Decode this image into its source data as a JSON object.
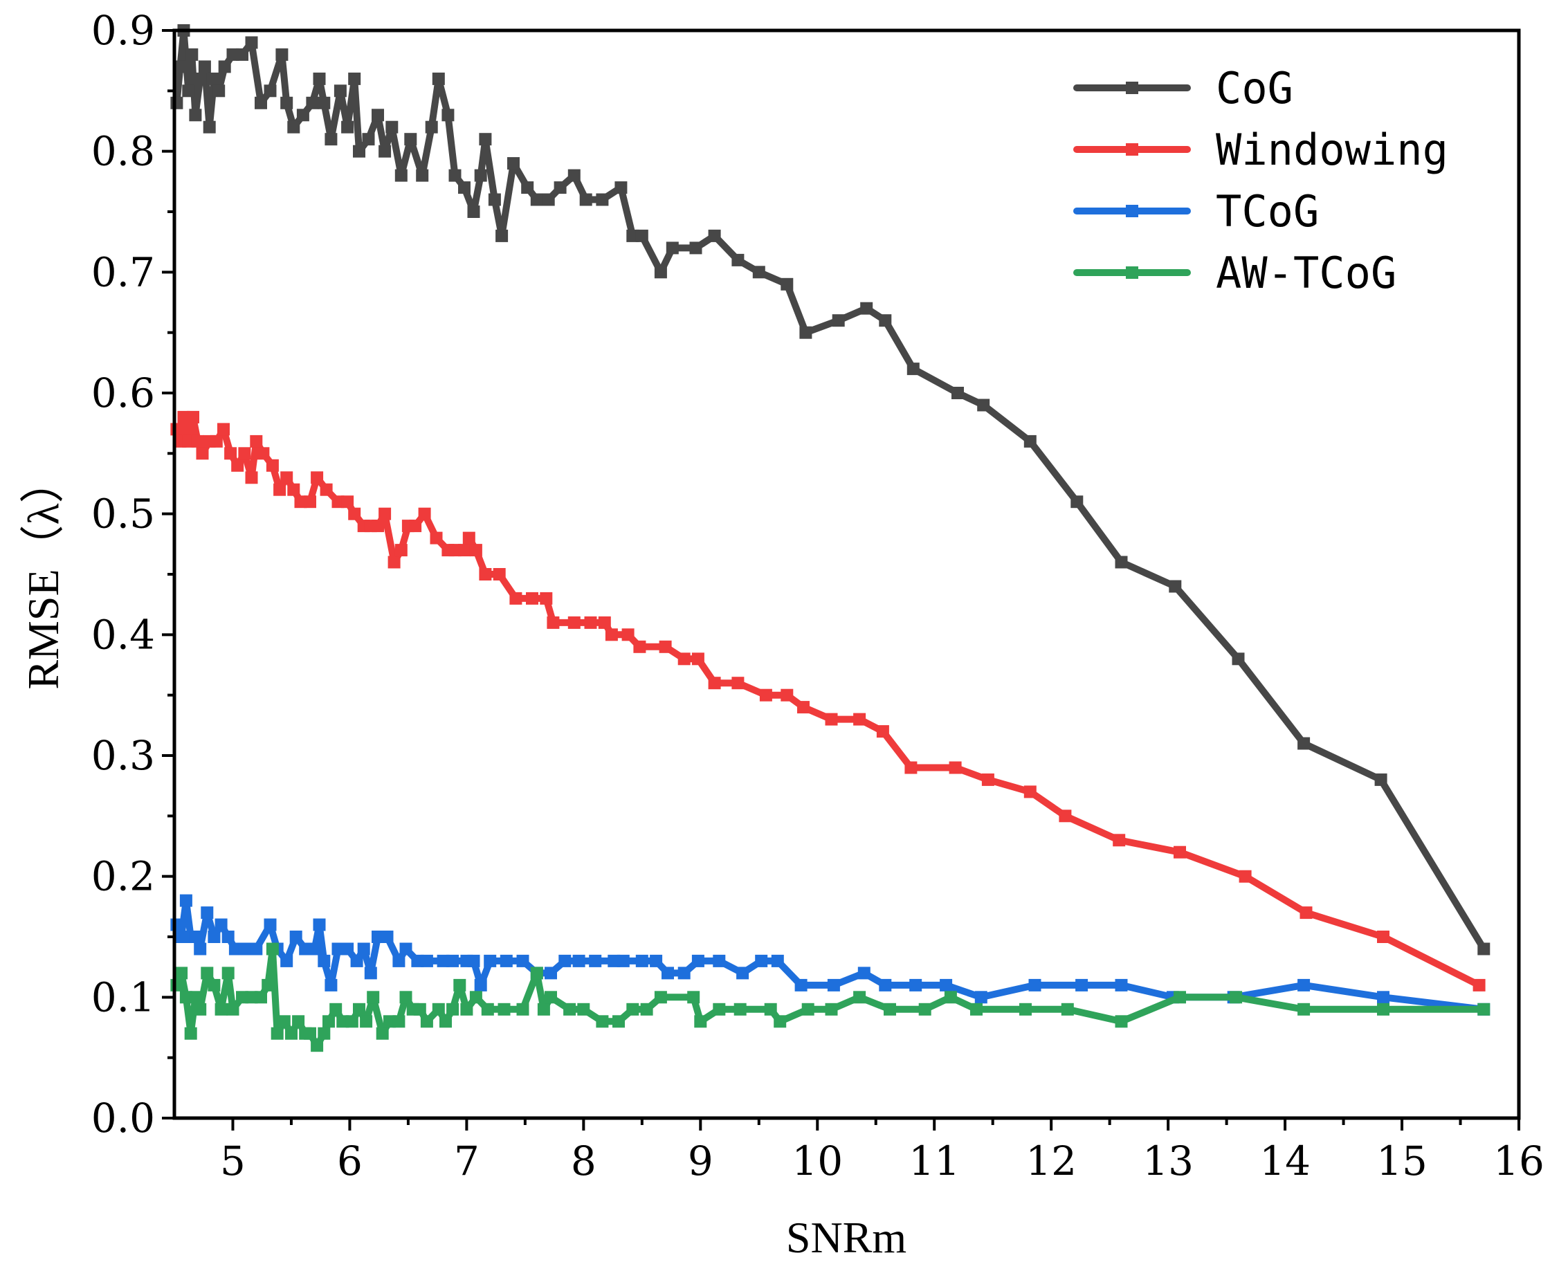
{
  "chart_data": {
    "type": "line",
    "title": "",
    "xlabel": "SNRm",
    "ylabel": "RMSE（λ）",
    "xlim": [
      4.5,
      16
    ],
    "ylim": [
      0.0,
      0.9
    ],
    "xticks": [
      "5",
      "6",
      "7",
      "8",
      "9",
      "10",
      "11",
      "12",
      "13",
      "14",
      "15",
      "16"
    ],
    "yticks": [
      "0.0",
      "0.1",
      "0.2",
      "0.3",
      "0.4",
      "0.5",
      "0.6",
      "0.7",
      "0.8",
      "0.9"
    ],
    "legend_position": "top-right",
    "grid": false,
    "series": [
      {
        "name": "CoG",
        "color": "#474747",
        "points": [
          [
            4.52,
            0.84
          ],
          [
            4.55,
            0.87
          ],
          [
            4.58,
            0.9
          ],
          [
            4.62,
            0.85
          ],
          [
            4.65,
            0.88
          ],
          [
            4.68,
            0.83
          ],
          [
            4.72,
            0.86
          ],
          [
            4.76,
            0.87
          ],
          [
            4.8,
            0.82
          ],
          [
            4.84,
            0.86
          ],
          [
            4.88,
            0.85
          ],
          [
            4.93,
            0.87
          ],
          [
            5.0,
            0.88
          ],
          [
            5.08,
            0.88
          ],
          [
            5.16,
            0.89
          ],
          [
            5.24,
            0.84
          ],
          [
            5.32,
            0.85
          ],
          [
            5.42,
            0.88
          ],
          [
            5.46,
            0.84
          ],
          [
            5.52,
            0.82
          ],
          [
            5.6,
            0.83
          ],
          [
            5.68,
            0.84
          ],
          [
            5.74,
            0.86
          ],
          [
            5.78,
            0.84
          ],
          [
            5.84,
            0.81
          ],
          [
            5.92,
            0.85
          ],
          [
            5.98,
            0.82
          ],
          [
            6.04,
            0.86
          ],
          [
            6.08,
            0.8
          ],
          [
            6.16,
            0.81
          ],
          [
            6.24,
            0.83
          ],
          [
            6.3,
            0.8
          ],
          [
            6.36,
            0.82
          ],
          [
            6.44,
            0.78
          ],
          [
            6.52,
            0.81
          ],
          [
            6.62,
            0.78
          ],
          [
            6.7,
            0.82
          ],
          [
            6.76,
            0.86
          ],
          [
            6.84,
            0.83
          ],
          [
            6.9,
            0.78
          ],
          [
            6.98,
            0.77
          ],
          [
            7.06,
            0.75
          ],
          [
            7.12,
            0.78
          ],
          [
            7.16,
            0.81
          ],
          [
            7.24,
            0.76
          ],
          [
            7.3,
            0.73
          ],
          [
            7.4,
            0.79
          ],
          [
            7.52,
            0.77
          ],
          [
            7.6,
            0.76
          ],
          [
            7.7,
            0.76
          ],
          [
            7.8,
            0.77
          ],
          [
            7.92,
            0.78
          ],
          [
            8.02,
            0.76
          ],
          [
            8.16,
            0.76
          ],
          [
            8.32,
            0.77
          ],
          [
            8.42,
            0.73
          ],
          [
            8.5,
            0.73
          ],
          [
            8.66,
            0.7
          ],
          [
            8.76,
            0.72
          ],
          [
            8.96,
            0.72
          ],
          [
            9.12,
            0.73
          ],
          [
            9.32,
            0.71
          ],
          [
            9.5,
            0.7
          ],
          [
            9.74,
            0.69
          ],
          [
            9.9,
            0.65
          ],
          [
            10.18,
            0.66
          ],
          [
            10.42,
            0.67
          ],
          [
            10.58,
            0.66
          ],
          [
            10.82,
            0.62
          ],
          [
            11.2,
            0.6
          ],
          [
            11.42,
            0.59
          ],
          [
            11.82,
            0.56
          ],
          [
            12.22,
            0.51
          ],
          [
            12.6,
            0.46
          ],
          [
            13.06,
            0.44
          ],
          [
            13.6,
            0.38
          ],
          [
            14.16,
            0.31
          ],
          [
            14.82,
            0.28
          ],
          [
            15.7,
            0.14
          ]
        ]
      },
      {
        "name": "Windowing",
        "color": "#ef3b3b",
        "points": [
          [
            4.52,
            0.57
          ],
          [
            4.55,
            0.56
          ],
          [
            4.58,
            0.58
          ],
          [
            4.62,
            0.56
          ],
          [
            4.66,
            0.58
          ],
          [
            4.7,
            0.56
          ],
          [
            4.74,
            0.55
          ],
          [
            4.8,
            0.56
          ],
          [
            4.86,
            0.56
          ],
          [
            4.92,
            0.57
          ],
          [
            4.98,
            0.55
          ],
          [
            5.04,
            0.54
          ],
          [
            5.1,
            0.55
          ],
          [
            5.16,
            0.53
          ],
          [
            5.2,
            0.56
          ],
          [
            5.26,
            0.55
          ],
          [
            5.34,
            0.54
          ],
          [
            5.4,
            0.52
          ],
          [
            5.46,
            0.53
          ],
          [
            5.52,
            0.52
          ],
          [
            5.58,
            0.51
          ],
          [
            5.66,
            0.51
          ],
          [
            5.72,
            0.53
          ],
          [
            5.8,
            0.52
          ],
          [
            5.9,
            0.51
          ],
          [
            5.98,
            0.51
          ],
          [
            6.04,
            0.5
          ],
          [
            6.12,
            0.49
          ],
          [
            6.18,
            0.49
          ],
          [
            6.24,
            0.49
          ],
          [
            6.3,
            0.5
          ],
          [
            6.38,
            0.46
          ],
          [
            6.44,
            0.47
          ],
          [
            6.5,
            0.49
          ],
          [
            6.56,
            0.49
          ],
          [
            6.64,
            0.5
          ],
          [
            6.74,
            0.48
          ],
          [
            6.84,
            0.47
          ],
          [
            6.9,
            0.47
          ],
          [
            6.98,
            0.47
          ],
          [
            7.02,
            0.48
          ],
          [
            7.08,
            0.47
          ],
          [
            7.16,
            0.45
          ],
          [
            7.28,
            0.45
          ],
          [
            7.42,
            0.43
          ],
          [
            7.56,
            0.43
          ],
          [
            7.68,
            0.43
          ],
          [
            7.74,
            0.41
          ],
          [
            7.92,
            0.41
          ],
          [
            8.06,
            0.41
          ],
          [
            8.18,
            0.41
          ],
          [
            8.24,
            0.4
          ],
          [
            8.38,
            0.4
          ],
          [
            8.48,
            0.39
          ],
          [
            8.7,
            0.39
          ],
          [
            8.86,
            0.38
          ],
          [
            8.98,
            0.38
          ],
          [
            9.12,
            0.36
          ],
          [
            9.32,
            0.36
          ],
          [
            9.56,
            0.35
          ],
          [
            9.74,
            0.35
          ],
          [
            9.88,
            0.34
          ],
          [
            10.12,
            0.33
          ],
          [
            10.36,
            0.33
          ],
          [
            10.56,
            0.32
          ],
          [
            10.8,
            0.29
          ],
          [
            11.18,
            0.29
          ],
          [
            11.46,
            0.28
          ],
          [
            11.82,
            0.27
          ],
          [
            12.12,
            0.25
          ],
          [
            12.58,
            0.23
          ],
          [
            13.1,
            0.22
          ],
          [
            13.66,
            0.2
          ],
          [
            14.18,
            0.17
          ],
          [
            14.84,
            0.15
          ],
          [
            15.66,
            0.11
          ]
        ]
      },
      {
        "name": "TCoG",
        "color": "#1e6fdc",
        "points": [
          [
            4.52,
            0.16
          ],
          [
            4.56,
            0.15
          ],
          [
            4.6,
            0.18
          ],
          [
            4.64,
            0.15
          ],
          [
            4.68,
            0.15
          ],
          [
            4.72,
            0.14
          ],
          [
            4.78,
            0.17
          ],
          [
            4.84,
            0.15
          ],
          [
            4.9,
            0.16
          ],
          [
            4.96,
            0.15
          ],
          [
            5.02,
            0.14
          ],
          [
            5.1,
            0.14
          ],
          [
            5.2,
            0.14
          ],
          [
            5.32,
            0.16
          ],
          [
            5.38,
            0.14
          ],
          [
            5.46,
            0.13
          ],
          [
            5.54,
            0.15
          ],
          [
            5.62,
            0.14
          ],
          [
            5.7,
            0.14
          ],
          [
            5.74,
            0.16
          ],
          [
            5.78,
            0.13
          ],
          [
            5.84,
            0.11
          ],
          [
            5.9,
            0.14
          ],
          [
            5.98,
            0.14
          ],
          [
            6.06,
            0.13
          ],
          [
            6.12,
            0.14
          ],
          [
            6.18,
            0.12
          ],
          [
            6.24,
            0.15
          ],
          [
            6.32,
            0.15
          ],
          [
            6.42,
            0.13
          ],
          [
            6.48,
            0.14
          ],
          [
            6.58,
            0.13
          ],
          [
            6.66,
            0.13
          ],
          [
            6.8,
            0.13
          ],
          [
            6.88,
            0.13
          ],
          [
            7.0,
            0.13
          ],
          [
            7.06,
            0.13
          ],
          [
            7.12,
            0.11
          ],
          [
            7.2,
            0.13
          ],
          [
            7.34,
            0.13
          ],
          [
            7.48,
            0.13
          ],
          [
            7.6,
            0.12
          ],
          [
            7.72,
            0.12
          ],
          [
            7.84,
            0.13
          ],
          [
            7.96,
            0.13
          ],
          [
            8.1,
            0.13
          ],
          [
            8.26,
            0.13
          ],
          [
            8.34,
            0.13
          ],
          [
            8.5,
            0.13
          ],
          [
            8.62,
            0.13
          ],
          [
            8.72,
            0.12
          ],
          [
            8.86,
            0.12
          ],
          [
            8.98,
            0.13
          ],
          [
            9.16,
            0.13
          ],
          [
            9.36,
            0.12
          ],
          [
            9.52,
            0.13
          ],
          [
            9.66,
            0.13
          ],
          [
            9.86,
            0.11
          ],
          [
            10.14,
            0.11
          ],
          [
            10.4,
            0.12
          ],
          [
            10.58,
            0.11
          ],
          [
            10.84,
            0.11
          ],
          [
            11.1,
            0.11
          ],
          [
            11.4,
            0.1
          ],
          [
            11.86,
            0.11
          ],
          [
            12.26,
            0.11
          ],
          [
            12.6,
            0.11
          ],
          [
            13.04,
            0.1
          ],
          [
            13.56,
            0.1
          ],
          [
            14.16,
            0.11
          ],
          [
            14.84,
            0.1
          ],
          [
            15.7,
            0.09
          ]
        ]
      },
      {
        "name": "AW-TCoG",
        "color": "#2fa35a",
        "points": [
          [
            4.52,
            0.11
          ],
          [
            4.56,
            0.12
          ],
          [
            4.6,
            0.1
          ],
          [
            4.64,
            0.07
          ],
          [
            4.68,
            0.1
          ],
          [
            4.72,
            0.09
          ],
          [
            4.78,
            0.12
          ],
          [
            4.84,
            0.11
          ],
          [
            4.9,
            0.09
          ],
          [
            4.96,
            0.12
          ],
          [
            5.0,
            0.09
          ],
          [
            5.08,
            0.1
          ],
          [
            5.16,
            0.1
          ],
          [
            5.24,
            0.1
          ],
          [
            5.3,
            0.11
          ],
          [
            5.34,
            0.14
          ],
          [
            5.38,
            0.07
          ],
          [
            5.44,
            0.08
          ],
          [
            5.5,
            0.07
          ],
          [
            5.56,
            0.08
          ],
          [
            5.62,
            0.07
          ],
          [
            5.66,
            0.07
          ],
          [
            5.72,
            0.06
          ],
          [
            5.78,
            0.07
          ],
          [
            5.82,
            0.08
          ],
          [
            5.88,
            0.09
          ],
          [
            5.94,
            0.08
          ],
          [
            6.02,
            0.08
          ],
          [
            6.08,
            0.09
          ],
          [
            6.14,
            0.08
          ],
          [
            6.2,
            0.1
          ],
          [
            6.28,
            0.07
          ],
          [
            6.34,
            0.08
          ],
          [
            6.42,
            0.08
          ],
          [
            6.48,
            0.1
          ],
          [
            6.54,
            0.09
          ],
          [
            6.6,
            0.09
          ],
          [
            6.66,
            0.08
          ],
          [
            6.76,
            0.09
          ],
          [
            6.82,
            0.08
          ],
          [
            6.88,
            0.09
          ],
          [
            6.94,
            0.11
          ],
          [
            7.0,
            0.09
          ],
          [
            7.08,
            0.1
          ],
          [
            7.18,
            0.09
          ],
          [
            7.32,
            0.09
          ],
          [
            7.48,
            0.09
          ],
          [
            7.6,
            0.12
          ],
          [
            7.66,
            0.09
          ],
          [
            7.72,
            0.1
          ],
          [
            7.88,
            0.09
          ],
          [
            8.0,
            0.09
          ],
          [
            8.16,
            0.08
          ],
          [
            8.3,
            0.08
          ],
          [
            8.42,
            0.09
          ],
          [
            8.54,
            0.09
          ],
          [
            8.66,
            0.1
          ],
          [
            8.94,
            0.1
          ],
          [
            9.0,
            0.08
          ],
          [
            9.16,
            0.09
          ],
          [
            9.34,
            0.09
          ],
          [
            9.6,
            0.09
          ],
          [
            9.68,
            0.08
          ],
          [
            9.92,
            0.09
          ],
          [
            10.12,
            0.09
          ],
          [
            10.36,
            0.1
          ],
          [
            10.62,
            0.09
          ],
          [
            10.92,
            0.09
          ],
          [
            11.14,
            0.1
          ],
          [
            11.36,
            0.09
          ],
          [
            11.78,
            0.09
          ],
          [
            12.14,
            0.09
          ],
          [
            12.6,
            0.08
          ],
          [
            13.1,
            0.1
          ],
          [
            13.58,
            0.1
          ],
          [
            14.16,
            0.09
          ],
          [
            14.84,
            0.09
          ],
          [
            15.7,
            0.09
          ]
        ]
      }
    ]
  }
}
